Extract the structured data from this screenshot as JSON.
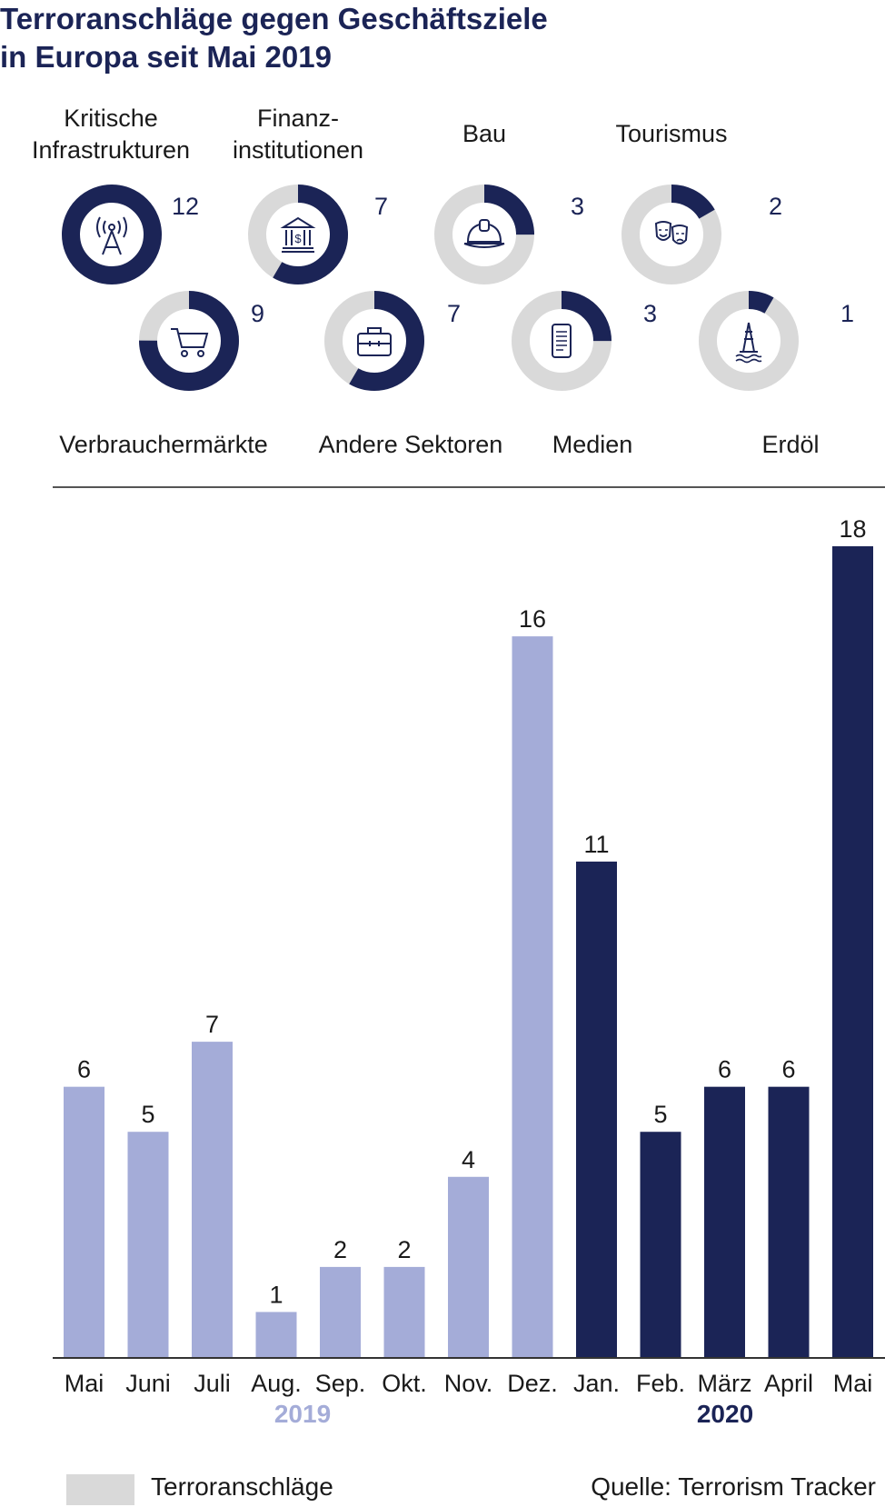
{
  "title": [
    "Terroranschläge gegen Geschäftsziele",
    "in Europa seit Mai 2019"
  ],
  "colors": {
    "navy": "#1b2456",
    "lavender": "#a4acd8",
    "grey": "#d9d9d9"
  },
  "sectors": [
    {
      "label": [
        "Kritische",
        "Infrastrukturen"
      ],
      "count": "12",
      "value": 12,
      "icon": "antenna-icon",
      "row": "top"
    },
    {
      "label": [
        "Finanz-",
        "institutionen"
      ],
      "count": "7",
      "value": 7,
      "icon": "bank-icon",
      "row": "top"
    },
    {
      "label": [
        "Bau"
      ],
      "count": "3",
      "value": 3,
      "icon": "hardhat-icon",
      "row": "top"
    },
    {
      "label": [
        "Tourismus"
      ],
      "count": "2",
      "value": 2,
      "icon": "theater-masks-icon",
      "row": "top"
    },
    {
      "label": [
        "Verbrauchermärkte"
      ],
      "count": "9",
      "value": 9,
      "icon": "shopping-cart-icon",
      "row": "bottom"
    },
    {
      "label": [
        "Andere Sektoren"
      ],
      "count": "7",
      "value": 7,
      "icon": "briefcase-icon",
      "row": "bottom"
    },
    {
      "label": [
        "Medien"
      ],
      "count": "3",
      "value": 3,
      "icon": "smartphone-icon",
      "row": "bottom"
    },
    {
      "label": [
        "Erdöl"
      ],
      "count": "1",
      "value": 1,
      "icon": "oil-rig-icon",
      "row": "bottom"
    }
  ],
  "chart_data": {
    "type": "bar",
    "categories": [
      "Mai",
      "Juni",
      "Juli",
      "Aug.",
      "Sep.",
      "Okt.",
      "Nov.",
      "Dez.",
      "Jan.",
      "Feb.",
      "März",
      "April",
      "Mai"
    ],
    "values": [
      6,
      5,
      7,
      1,
      2,
      2,
      4,
      16,
      11,
      5,
      6,
      6,
      18
    ],
    "year_groups": [
      {
        "label": "2019",
        "color": "#a4acd8",
        "range": [
          0,
          7
        ]
      },
      {
        "label": "2020",
        "color": "#1b2456",
        "range": [
          8,
          12
        ]
      }
    ],
    "ylim": [
      0,
      18
    ],
    "grid": false
  },
  "legend": {
    "label": "Terroranschläge",
    "color": "#d9d9d9"
  },
  "source": "Quelle: Terrorism Tracker"
}
